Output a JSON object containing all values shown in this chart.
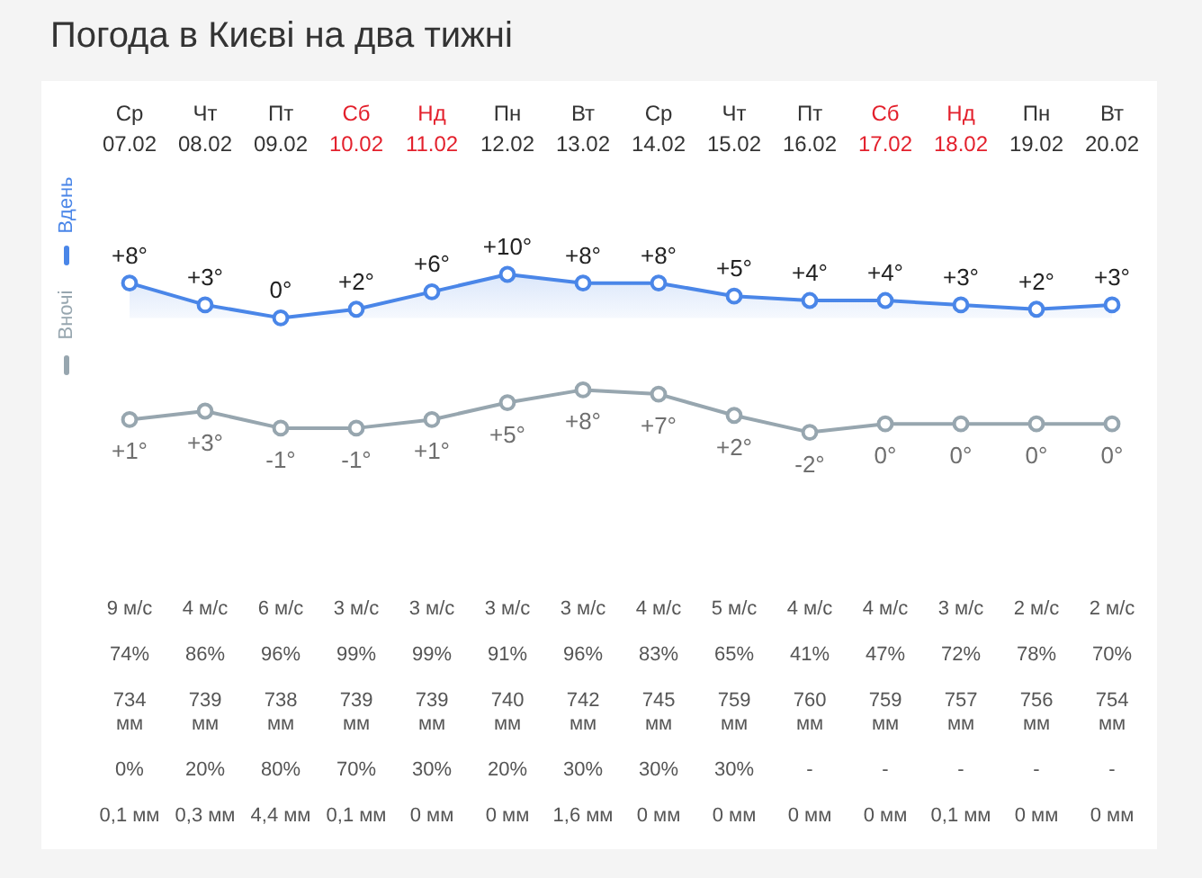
{
  "chart_data": [
    {
      "type": "area",
      "title": "Погода в Києві на два тижні",
      "categories": [
        "Ср\n07.02",
        "Чт\n08.02",
        "Пт\n09.02",
        "Сб\n10.02",
        "Нд\n11.02",
        "Пн\n12.02",
        "Вт\n13.02",
        "Ср\n14.02",
        "Чт\n15.02",
        "Пт\n16.02",
        "Сб\n17.02",
        "Нд\n18.02",
        "Пн\n19.02",
        "Вт\n20.02"
      ],
      "series": [
        {
          "name": "Вдень",
          "color": "#4a86e8",
          "values": [
            8,
            3,
            0,
            2,
            6,
            10,
            8,
            8,
            5,
            4,
            4,
            3,
            2,
            3
          ],
          "value_labels": [
            "+8°",
            "+3°",
            "0°",
            "+2°",
            "+6°",
            "+10°",
            "+8°",
            "+8°",
            "+5°",
            "+4°",
            "+4°",
            "+3°",
            "+2°",
            "+3°"
          ]
        }
      ],
      "tick_labels": "x",
      "legend": "left",
      "marker": "circle",
      "line_style": "solid"
    },
    {
      "type": "line",
      "categories": [
        null,
        null,
        null,
        null,
        null,
        null,
        null,
        null,
        null,
        null,
        null,
        null,
        null,
        null
      ],
      "series": [
        {
          "name": "Вночі",
          "color": "#97a6af",
          "values": [
            1,
            3,
            -1,
            -1,
            1,
            5,
            8,
            7,
            2,
            -2,
            0,
            0,
            0,
            0
          ],
          "value_labels": [
            "+1°",
            "+3°",
            "-1°",
            "-1°",
            "+1°",
            "+5°",
            "+8°",
            "+7°",
            "+2°",
            "-2°",
            "0°",
            "0°",
            "0°",
            "0°"
          ]
        }
      ],
      "tick_labels": false,
      "legend": "left",
      "marker": "circle",
      "line_style": "solid"
    },
    {
      "type": "other",
      "annotations": [
        "9 м/с",
        "4 м/с",
        "6 м/с",
        "3 м/с",
        "3 м/с",
        "3 м/с",
        "3 м/с",
        "4 м/с",
        "5 м/с",
        "4 м/с",
        "4 м/с",
        "3 м/с",
        "2 м/с",
        "2 м/с",
        "74%",
        "86%",
        "96%",
        "99%",
        "99%",
        "91%",
        "96%",
        "83%",
        "65%",
        "41%",
        "47%",
        "72%",
        "78%",
        "70%",
        "734\nмм",
        "739\nмм",
        "738\nмм",
        "739\nмм",
        "739\nмм",
        "740\nмм",
        "742\nмм",
        "745\nмм",
        "759\nмм",
        "760\nмм",
        "759\nмм",
        "757\nмм",
        "756\nмм",
        "754\nмм",
        "0%",
        "20%",
        "80%",
        "70%",
        "30%",
        "20%",
        "30%",
        "30%",
        "30%",
        "-",
        "-",
        "-",
        "-",
        "-",
        "0,1 мм",
        "0,3 мм",
        "4,4 мм",
        "0,1 мм",
        "0 мм",
        "0 мм",
        "1,6 мм",
        "0 мм",
        "0 мм",
        "0 мм",
        "0 мм",
        "0,1 мм",
        "0 мм",
        "0 мм"
      ]
    }
  ]
}
